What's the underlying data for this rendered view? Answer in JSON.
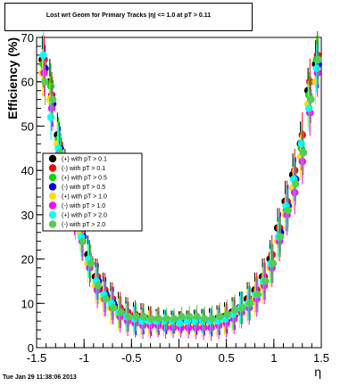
{
  "chart_data": {
    "type": "scatter",
    "title": "Lost wrt Geom for Primary Tracks |η| <= 1.0 at pT > 0.11",
    "xlabel": "η",
    "ylabel": "Efficiency (%)",
    "xlim": [
      -1.5,
      1.5
    ],
    "ylim": [
      0,
      70
    ],
    "xticks": [
      "-1.5",
      "-1",
      "-0.5",
      "0",
      "0.5",
      "1",
      "1.5"
    ],
    "yticks": [
      "0",
      "10",
      "20",
      "30",
      "40",
      "50",
      "60",
      "70"
    ],
    "grid": false,
    "legend_position": "left-middle",
    "series": [
      {
        "name": "(+) with pT > 0.1",
        "color": "#000000",
        "x": [
          -1.44,
          -1.36,
          -1.28,
          -1.2,
          -1.12,
          -1.04,
          -0.96,
          -0.88,
          -0.8,
          -0.72,
          -0.64,
          -0.56,
          -0.48,
          -0.4,
          -0.32,
          -0.24,
          -0.16,
          -0.08,
          0.0,
          0.08,
          0.16,
          0.24,
          0.32,
          0.4,
          0.48,
          0.56,
          0.64,
          0.72,
          0.8,
          0.88,
          0.96,
          1.04,
          1.12,
          1.2,
          1.28,
          1.36,
          1.44
        ],
        "values": [
          65,
          60,
          48,
          40,
          34,
          28,
          21,
          16,
          13,
          11,
          9,
          8,
          7,
          7,
          6.5,
          6,
          6,
          6,
          6,
          6,
          6,
          6,
          6,
          6.5,
          7,
          8,
          9,
          11,
          13,
          16,
          20,
          27,
          33,
          39,
          46,
          58,
          64
        ]
      },
      {
        "name": "(-) with pT > 0.1",
        "color": "#ff0000",
        "x": [
          -1.42,
          -1.34,
          -1.26,
          -1.18,
          -1.1,
          -1.02,
          -0.94,
          -0.86,
          -0.78,
          -0.7,
          -0.62,
          -0.54,
          -0.46,
          -0.38,
          -0.3,
          -0.22,
          -0.14,
          -0.06,
          0.02,
          0.1,
          0.18,
          0.26,
          0.34,
          0.42,
          0.5,
          0.58,
          0.66,
          0.74,
          0.82,
          0.9,
          0.98,
          1.06,
          1.14,
          1.22,
          1.3,
          1.38,
          1.46
        ],
        "values": [
          65,
          57,
          46,
          38,
          32,
          26,
          20,
          16,
          13,
          11,
          9,
          8,
          7.5,
          7,
          6.5,
          6.5,
          6,
          6,
          6,
          6,
          6,
          6,
          6,
          6.5,
          7,
          8,
          9,
          11,
          13,
          16,
          21,
          27,
          33,
          40,
          48,
          60,
          66
        ]
      },
      {
        "name": "(+) with pT > 0.5",
        "color": "#00dd00",
        "x": [
          -1.43,
          -1.35,
          -1.27,
          -1.19,
          -1.11,
          -1.03,
          -0.95,
          -0.87,
          -0.79,
          -0.71,
          -0.63,
          -0.55,
          -0.47,
          -0.39,
          -0.31,
          -0.23,
          -0.15,
          -0.07,
          0.01,
          0.09,
          0.17,
          0.25,
          0.33,
          0.41,
          0.49,
          0.57,
          0.65,
          0.73,
          0.81,
          0.89,
          0.97,
          1.05,
          1.13,
          1.21,
          1.29,
          1.37,
          1.45
        ],
        "values": [
          64,
          59,
          47,
          39,
          33,
          27,
          20,
          15,
          12,
          10,
          8,
          7,
          6.5,
          6,
          6,
          6,
          6,
          5.5,
          6,
          6,
          6,
          6,
          6,
          6,
          6.5,
          7.5,
          9,
          10,
          12,
          15,
          19,
          25,
          31,
          38,
          45,
          57,
          65
        ]
      },
      {
        "name": "(-) with pT > 0.5",
        "color": "#0000ff",
        "x": [
          -1.41,
          -1.33,
          -1.25,
          -1.17,
          -1.09,
          -1.01,
          -0.93,
          -0.85,
          -0.77,
          -0.69,
          -0.61,
          -0.53,
          -0.45,
          -0.37,
          -0.29,
          -0.21,
          -0.13,
          -0.05,
          0.03,
          0.11,
          0.19,
          0.27,
          0.35,
          0.43,
          0.51,
          0.59,
          0.67,
          0.75,
          0.83,
          0.91,
          0.99,
          1.07,
          1.15,
          1.23,
          1.31,
          1.39,
          1.47
        ],
        "values": [
          63,
          55,
          45,
          37,
          31,
          25,
          19,
          15,
          12,
          10,
          8,
          7,
          6,
          6,
          5.5,
          5.5,
          5.5,
          5.5,
          5.5,
          5.5,
          5.5,
          5.5,
          5.5,
          6,
          6.5,
          7.5,
          9,
          10,
          12,
          15,
          19,
          26,
          32,
          38,
          44,
          56,
          64
        ]
      },
      {
        "name": "(+) with pT > 1.0",
        "color": "#ffdd00",
        "x": [
          -1.44,
          -1.36,
          -1.28,
          -1.2,
          -1.12,
          -1.04,
          -0.96,
          -0.88,
          -0.8,
          -0.72,
          -0.64,
          -0.56,
          -0.48,
          -0.4,
          -0.32,
          -0.24,
          -0.16,
          -0.08,
          0.0,
          0.08,
          0.16,
          0.24,
          0.32,
          0.4,
          0.48,
          0.56,
          0.64,
          0.72,
          0.8,
          0.88,
          0.96,
          1.04,
          1.12,
          1.2,
          1.28,
          1.36,
          1.44
        ],
        "values": [
          62,
          56,
          46,
          38,
          32,
          26,
          19,
          14,
          11,
          9,
          7.5,
          6.5,
          6,
          5.5,
          5.5,
          5.5,
          5,
          5,
          5,
          5,
          5,
          5,
          5,
          5.5,
          6,
          7,
          8,
          9.5,
          11,
          14,
          18,
          24,
          30,
          36,
          43,
          55,
          60
        ]
      },
      {
        "name": "(-) with pT > 1.0",
        "color": "#ff00ff",
        "x": [
          -1.42,
          -1.34,
          -1.26,
          -1.18,
          -1.1,
          -1.02,
          -0.94,
          -0.86,
          -0.78,
          -0.7,
          -0.62,
          -0.54,
          -0.46,
          -0.38,
          -0.3,
          -0.22,
          -0.14,
          -0.06,
          0.02,
          0.1,
          0.18,
          0.26,
          0.34,
          0.42,
          0.5,
          0.58,
          0.66,
          0.74,
          0.82,
          0.9,
          0.98,
          1.06,
          1.14,
          1.22,
          1.3,
          1.38,
          1.46
        ],
        "values": [
          62,
          54,
          44,
          36,
          30,
          24,
          18,
          13,
          11,
          9,
          7,
          6,
          5.5,
          5,
          5,
          5,
          4.5,
          4.5,
          4.5,
          4.5,
          4.5,
          4.5,
          4.5,
          5,
          5.5,
          6.5,
          8,
          9,
          11,
          14,
          18,
          24,
          30,
          35,
          42,
          53,
          62
        ]
      },
      {
        "name": "(+) with pT > 2.0",
        "color": "#00ffff",
        "x": [
          -1.43,
          -1.35,
          -1.27,
          -1.19,
          -1.11,
          -1.03,
          -0.95,
          -0.87,
          -0.79,
          -0.71,
          -0.63,
          -0.55,
          -0.47,
          -0.39,
          -0.31,
          -0.23,
          -0.15,
          -0.07,
          0.01,
          0.09,
          0.17,
          0.25,
          0.33,
          0.41,
          0.49,
          0.57,
          0.65,
          0.73,
          0.81,
          0.89,
          0.97,
          1.05,
          1.13,
          1.21,
          1.29,
          1.37,
          1.45
        ],
        "values": [
          66,
          52,
          45,
          37,
          31,
          25,
          20,
          15,
          12,
          10,
          8,
          7,
          6.5,
          6,
          6,
          6,
          6,
          6,
          5.5,
          6,
          6,
          6,
          6,
          6,
          6.5,
          7.5,
          9,
          10,
          12,
          15,
          19,
          25,
          32,
          38,
          46,
          54,
          63
        ]
      },
      {
        "name": "(-) with pT > 2.0",
        "color": "#55cc55",
        "x": [
          -1.41,
          -1.33,
          -1.25,
          -1.17,
          -1.09,
          -1.01,
          -0.93,
          -0.85,
          -0.77,
          -0.69,
          -0.61,
          -0.53,
          -0.45,
          -0.37,
          -0.29,
          -0.21,
          -0.13,
          -0.05,
          0.03,
          0.11,
          0.19,
          0.27,
          0.35,
          0.43,
          0.51,
          0.59,
          0.67,
          0.75,
          0.83,
          0.91,
          0.99,
          1.07,
          1.15,
          1.23,
          1.31,
          1.39,
          1.47
        ],
        "values": [
          60,
          56,
          44,
          36,
          29,
          24,
          19,
          14,
          11,
          9,
          8,
          7,
          7,
          7,
          6.5,
          6.5,
          6.5,
          6.5,
          7,
          7,
          7,
          6.5,
          6.5,
          7,
          7.5,
          8.5,
          9,
          10,
          12,
          15,
          19,
          25,
          31,
          37,
          44,
          56,
          65
        ]
      }
    ]
  },
  "footer": {
    "date": "Tue Jan 29 11:38:06 2013"
  }
}
